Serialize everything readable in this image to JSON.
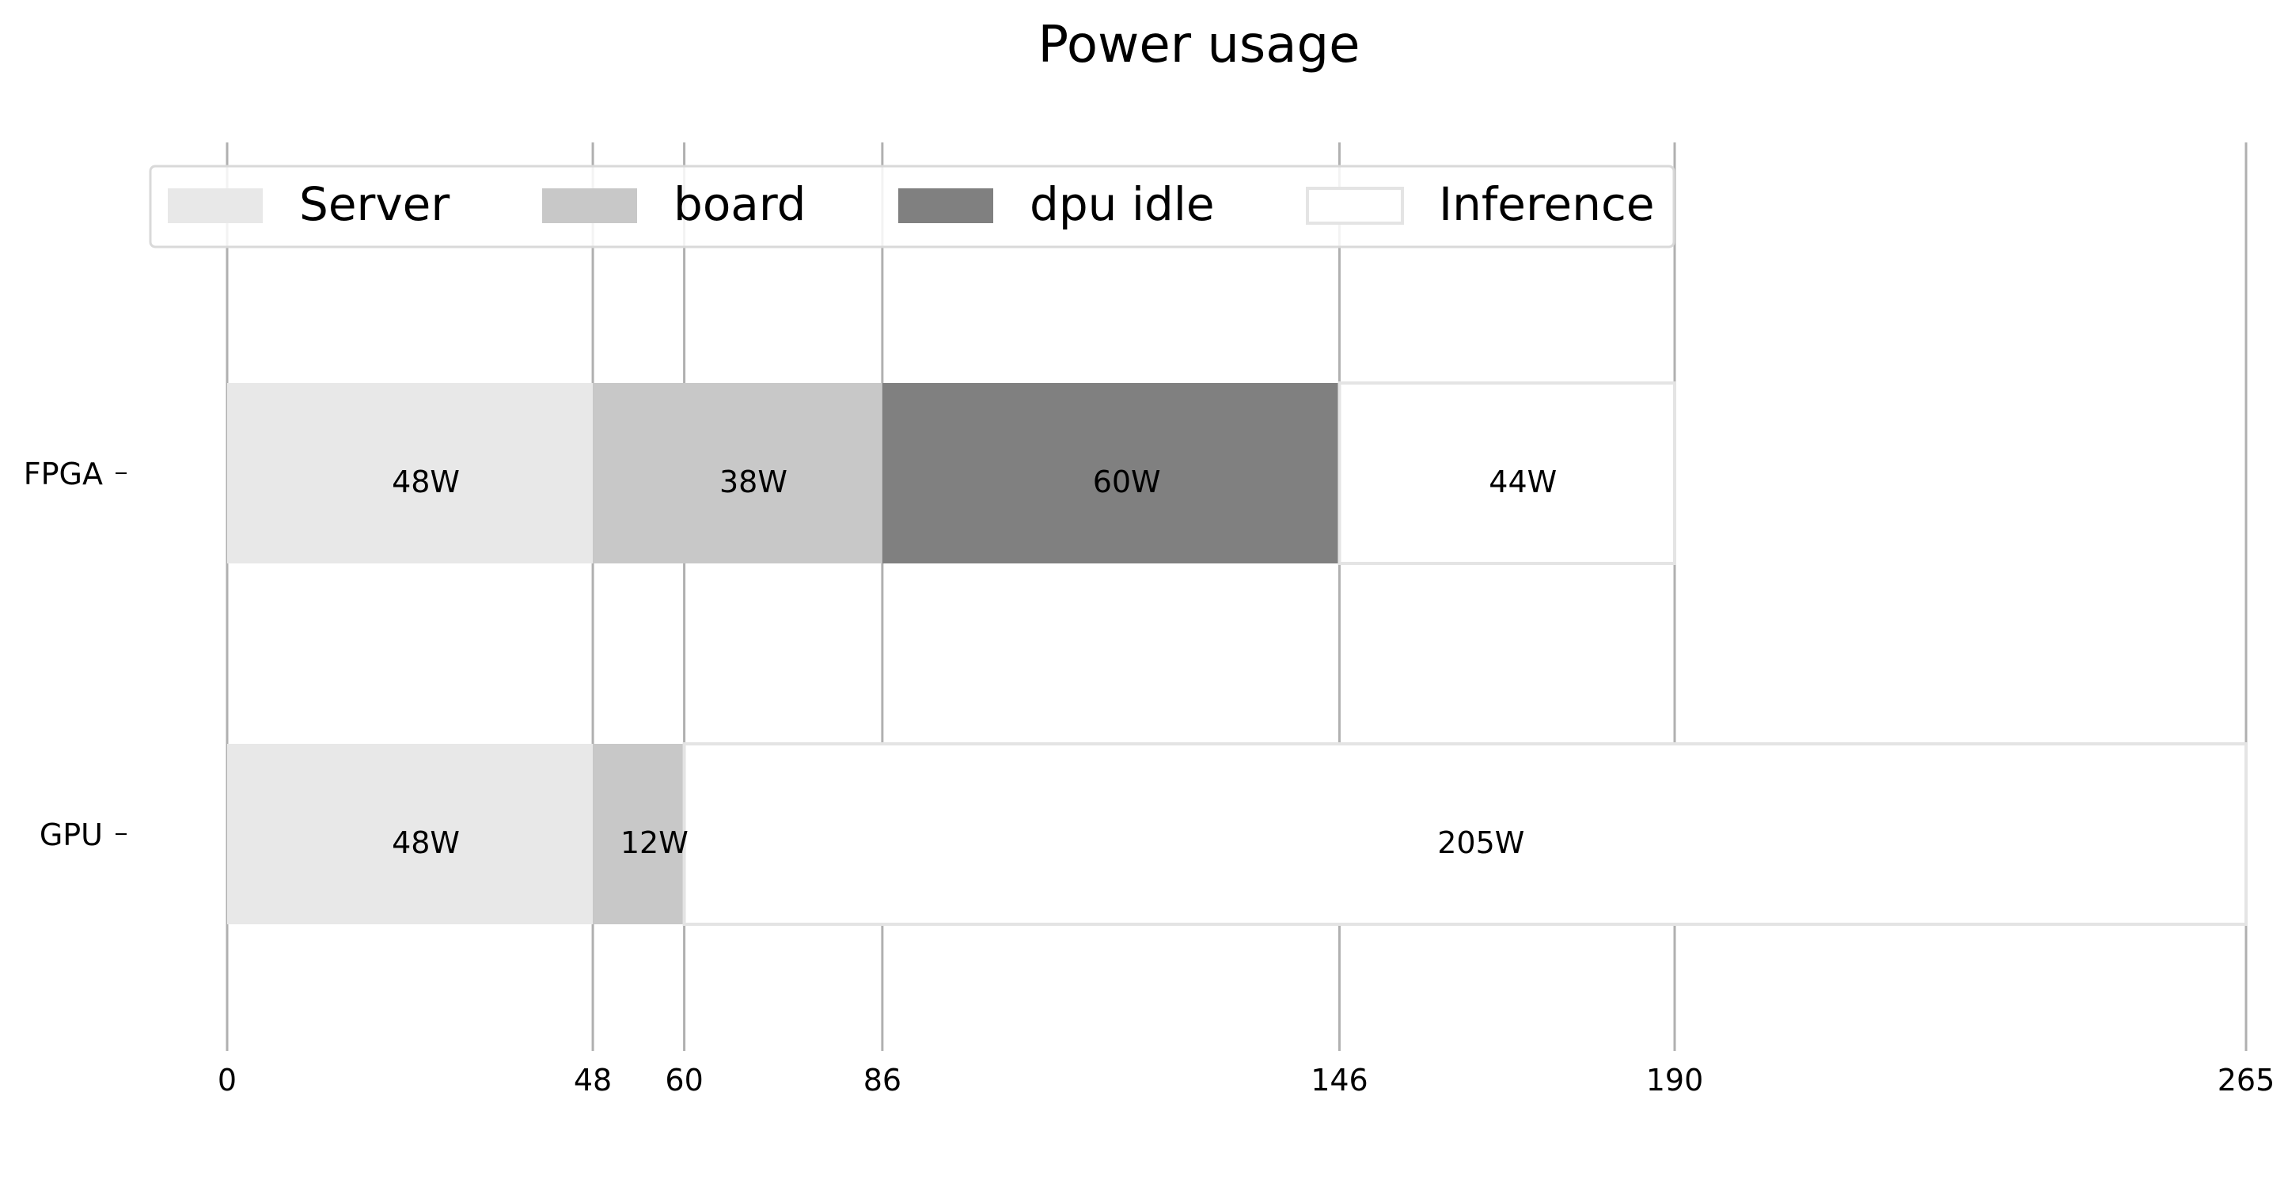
{
  "chart_data": {
    "type": "bar",
    "orientation": "horizontal",
    "stacked": true,
    "title": "Power usage",
    "xlabel": "",
    "ylabel": "",
    "categories": [
      "FPGA",
      "GPU"
    ],
    "series": [
      {
        "name": "Server",
        "values": [
          48,
          48
        ],
        "labels": [
          "48W",
          "48W"
        ],
        "color": "#e8e8e8"
      },
      {
        "name": "board",
        "values": [
          38,
          12
        ],
        "labels": [
          "38W",
          "12W"
        ],
        "color": "#c8c8c8"
      },
      {
        "name": "dpu idle",
        "values": [
          60,
          0
        ],
        "labels": [
          "60W",
          ""
        ],
        "color": "#808080"
      },
      {
        "name": "Inference",
        "values": [
          44,
          205
        ],
        "labels": [
          "44W",
          "205W"
        ],
        "color": "#ffffff"
      }
    ],
    "xticks": [
      0,
      48,
      60,
      86,
      146,
      190,
      265
    ],
    "xlim": [
      0,
      265
    ],
    "grid": "vertical lines at ticks",
    "legend_position": "top-left",
    "legend_columns": 4
  },
  "colors": {
    "gridline": "#b0b0b0",
    "bar_edge": "#e4e4e4",
    "legend_frame": "#d9d9d9"
  }
}
